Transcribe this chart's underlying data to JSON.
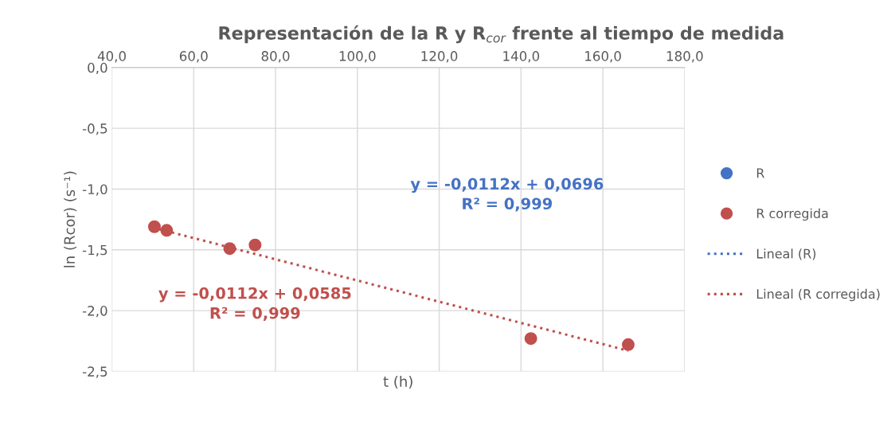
{
  "chart_data": {
    "type": "scatter",
    "title": "Representación de la R y R$_{cor}$ frente al tiempo de medida",
    "xlabel": "t (h)",
    "ylabel": "ln (Rcor) (s⁻¹)",
    "xlim": [
      40,
      180
    ],
    "xticks": [
      {
        "value": 40,
        "label": "40,0"
      },
      {
        "value": 60,
        "label": "60,0"
      },
      {
        "value": 80,
        "label": "80,0"
      },
      {
        "value": 100,
        "label": "100,0"
      },
      {
        "value": 120,
        "label": "120,0"
      },
      {
        "value": 140,
        "label": "140,0"
      },
      {
        "value": 160,
        "label": "160,0"
      },
      {
        "value": 180,
        "label": "180,0"
      }
    ],
    "ylim": [
      -2.5,
      0
    ],
    "yticks": [
      {
        "value": -2.5,
        "label": "-2,5"
      },
      {
        "value": -2.0,
        "label": "-2,0"
      },
      {
        "value": -1.5,
        "label": "-1,5"
      },
      {
        "value": -1.0,
        "label": "-1,0"
      },
      {
        "value": -0.5,
        "label": "-0,5"
      },
      {
        "value": 0,
        "label": "0,0"
      }
    ],
    "grid": true,
    "legend": "right",
    "marker": "circle",
    "x": [
      50.4,
      53.4,
      68.8,
      75.0,
      142.4,
      166.2
    ],
    "series": [
      {
        "name": "R",
        "color": "#4472c4",
        "values": [
          null,
          null,
          null,
          null,
          null,
          null
        ]
      },
      {
        "name": "R corregida",
        "color": "#c0504d",
        "values": [
          -1.31,
          -1.34,
          -1.49,
          -1.46,
          -2.23,
          -2.28
        ]
      },
      {
        "name": "Lineal (R)",
        "type": "line",
        "marker": "none",
        "line_style": "dotted",
        "color": "#4472c4",
        "values": [
          null,
          null,
          null,
          null,
          null,
          null
        ]
      },
      {
        "name": "Lineal (R corregida)",
        "type": "line",
        "marker": "none",
        "line_style": "dotted",
        "color": "#c0504d",
        "x": [
          51.6,
          166.2
        ],
        "values": [
          -1.33,
          -2.33
        ]
      }
    ],
    "annotations": [
      "y = -0,0112x + 0,0696\nR² = 0,999",
      "y = -0,0112x + 0,0585\nR² = 0,999"
    ]
  }
}
